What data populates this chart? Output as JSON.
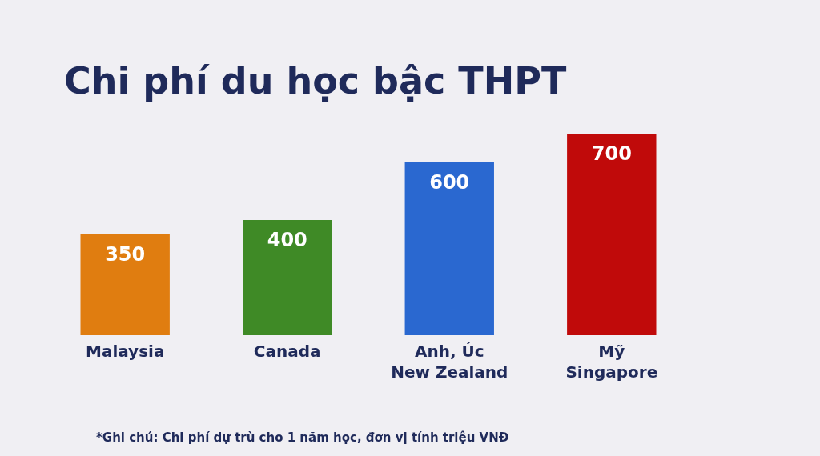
{
  "chart_data": {
    "type": "bar",
    "title": "Chi phí du học bậc THPT",
    "categories": [
      "Malaysia",
      "Canada",
      "Anh, Úc\nNew Zealand",
      "Mỹ\nSingapore"
    ],
    "values": [
      350,
      400,
      600,
      700
    ],
    "colors": [
      "#e07d10",
      "#3f8a26",
      "#2a68d0",
      "#c00a0a"
    ],
    "data_labels": true,
    "grid": false,
    "legend": false,
    "annotations": [
      "*Ghi chú: Chi phí dự trù cho 1 năm học, đơn vị tính triệu VNĐ"
    ]
  }
}
